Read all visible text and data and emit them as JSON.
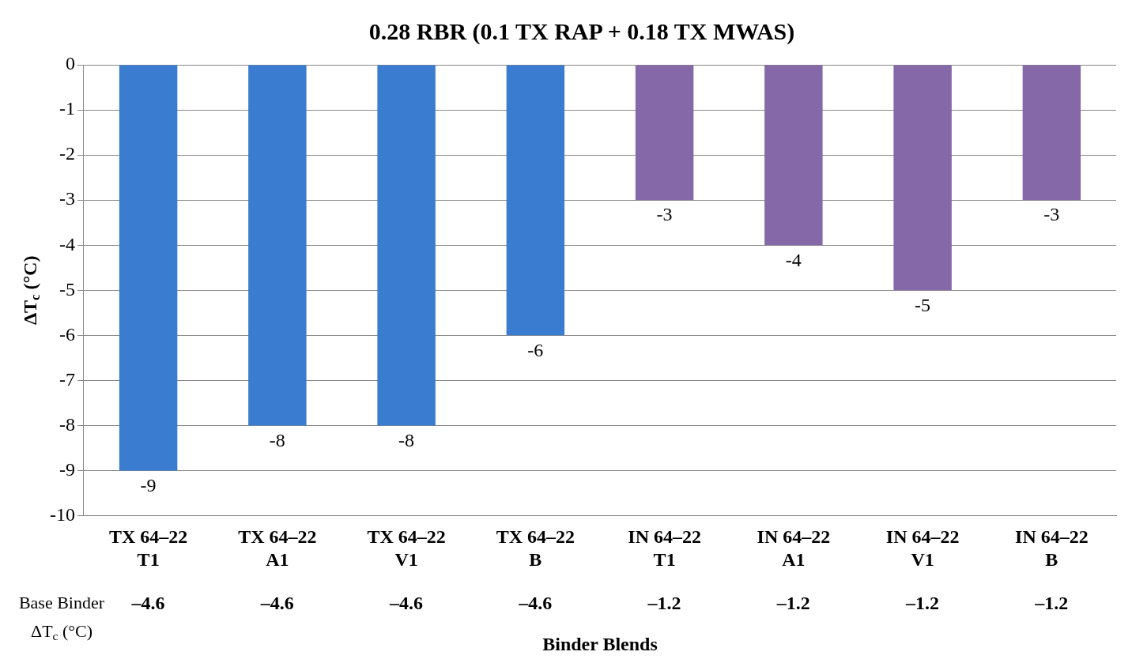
{
  "chart_data": {
    "type": "bar",
    "title": "0.28 RBR (0.1 TX RAP + 0.18 TX MWAS)",
    "xlabel": "Binder Blends",
    "ylabel": "ΔT$_{c}$ (°C)",
    "categories": [
      "TX 64–22\nT1",
      "TX 64–22\nA1",
      "TX 64–22\nV1",
      "TX 64–22\nB",
      "IN 64–22\nT1",
      "IN 64–22\nA1",
      "IN 64–22\nV1",
      "IN 64–22\nB"
    ],
    "values": [
      -9,
      -8,
      -8,
      -6,
      -3,
      -4,
      -5,
      -3
    ],
    "colors": [
      "#3a7ccf",
      "#3a7ccf",
      "#3a7ccf",
      "#3a7ccf",
      "#8468a8",
      "#8468a8",
      "#8468a8",
      "#8468a8"
    ],
    "ylim": [
      -10,
      0
    ],
    "yticks": [
      -10,
      -9,
      -8,
      -7,
      -6,
      -5,
      -4,
      -3,
      -2,
      -1,
      0
    ],
    "grid": "y",
    "legend": false,
    "data_labels": true,
    "annotations": [
      "Base Binder\nΔT$_{c}$ (°C)",
      "–4.6",
      "–4.6",
      "–4.6",
      "–4.6",
      "–1.2",
      "–1.2",
      "–1.2",
      "–1.2"
    ]
  }
}
